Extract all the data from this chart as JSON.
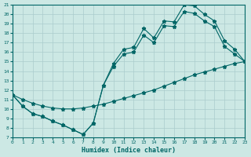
{
  "xlabel": "Humidex (Indice chaleur)",
  "xlim": [
    0,
    23
  ],
  "ylim": [
    7,
    21
  ],
  "xticks": [
    0,
    1,
    2,
    3,
    4,
    5,
    6,
    7,
    8,
    9,
    10,
    11,
    12,
    13,
    14,
    15,
    16,
    17,
    18,
    19,
    20,
    21,
    22,
    23
  ],
  "yticks": [
    7,
    8,
    9,
    10,
    11,
    12,
    13,
    14,
    15,
    16,
    17,
    18,
    19,
    20,
    21
  ],
  "bg_color": "#cce8e4",
  "grid_color": "#aacccc",
  "line_color": "#006666",
  "line1_x": [
    0,
    1,
    2,
    3,
    4,
    5,
    6,
    7,
    8,
    9,
    10,
    11,
    12,
    13,
    14,
    15,
    16,
    17,
    18,
    19,
    20,
    21,
    22,
    23
  ],
  "line1_y": [
    11.5,
    10.3,
    9.5,
    9.2,
    8.7,
    8.3,
    7.8,
    7.3,
    8.5,
    12.5,
    14.8,
    16.3,
    16.5,
    18.5,
    17.5,
    19.3,
    19.2,
    21.0,
    20.9,
    20.0,
    19.3,
    17.2,
    16.3,
    15.0
  ],
  "line2_x": [
    0,
    1,
    2,
    3,
    4,
    5,
    6,
    7,
    8,
    9,
    10,
    11,
    12,
    13,
    14,
    15,
    16,
    17,
    18,
    19,
    20,
    21,
    22,
    23
  ],
  "line2_y": [
    11.5,
    10.3,
    9.5,
    9.2,
    8.7,
    8.3,
    7.8,
    7.3,
    8.5,
    12.5,
    14.5,
    15.8,
    16.0,
    17.8,
    17.0,
    18.8,
    18.7,
    20.3,
    20.1,
    19.3,
    18.7,
    16.6,
    15.8,
    15.0
  ],
  "line3_x": [
    0,
    1,
    2,
    3,
    4,
    5,
    6,
    7,
    8,
    9,
    10,
    11,
    12,
    13,
    14,
    15,
    16,
    17,
    18,
    19,
    20,
    21,
    22,
    23
  ],
  "line3_y": [
    11.5,
    11.0,
    10.6,
    10.3,
    10.1,
    10.0,
    10.0,
    10.1,
    10.3,
    10.5,
    10.8,
    11.1,
    11.4,
    11.7,
    12.0,
    12.4,
    12.8,
    13.2,
    13.6,
    13.9,
    14.2,
    14.5,
    14.8,
    15.0
  ]
}
